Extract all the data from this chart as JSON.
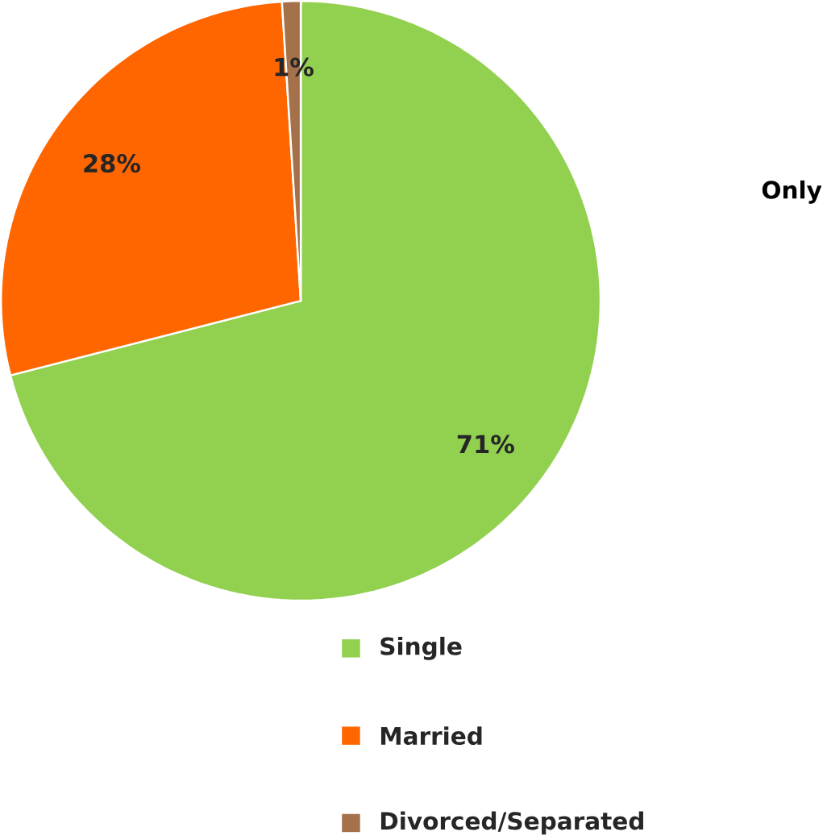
{
  "chart_data": {
    "type": "pie",
    "categories": [
      "Single",
      "Married",
      "Divorced/Separated"
    ],
    "values": [
      71,
      28,
      1
    ],
    "colors": [
      "#92d050",
      "#ff6600",
      "#a5714a"
    ],
    "value_labels": [
      "71%",
      "28%",
      "1%"
    ],
    "legend": "bottom",
    "annotations": [
      "Only"
    ]
  }
}
